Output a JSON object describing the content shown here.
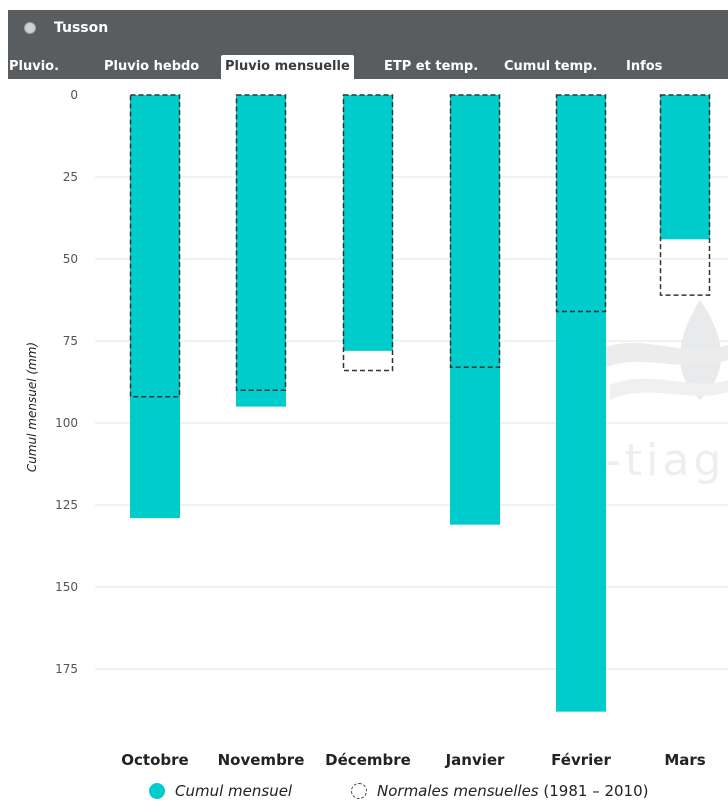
{
  "window": {
    "title": "Tusson"
  },
  "tabs": [
    {
      "label": "Pluvio.",
      "active": false
    },
    {
      "label": "Pluvio hebdo",
      "active": false
    },
    {
      "label": "Pluvio mensuelle",
      "active": true
    },
    {
      "label": "ETP et temp.",
      "active": false
    },
    {
      "label": "Cumul temp.",
      "active": false
    },
    {
      "label": "Infos",
      "active": false
    }
  ],
  "watermark": {
    "text": "-tiag"
  },
  "legend": {
    "series1_label": "Cumul mensuel",
    "series2_label_italic": "Normales mensuelles",
    "series2_label_suffix": "(1981 – 2010)"
  },
  "colors": {
    "bar": "#00cccc",
    "header": "#5a5d60",
    "grid": "#e6e6e6",
    "normal_outline": "#333333"
  },
  "chart_data": {
    "type": "bar",
    "categories": [
      "Octobre",
      "Novembre",
      "Décembre",
      "Janvier",
      "Février",
      "Mars"
    ],
    "series": [
      {
        "name": "Cumul mensuel",
        "values": [
          129,
          95,
          78,
          131,
          188,
          44
        ]
      },
      {
        "name": "Normales mensuelles (1981 – 2010)",
        "values": [
          92,
          90,
          84,
          83,
          66,
          61
        ]
      }
    ],
    "ylabel": "Cumul mensuel (mm)",
    "ylim": [
      0,
      190
    ],
    "y_inverted": true,
    "yticks": [
      0,
      25,
      50,
      75,
      100,
      125,
      150,
      175
    ],
    "grid": true
  }
}
